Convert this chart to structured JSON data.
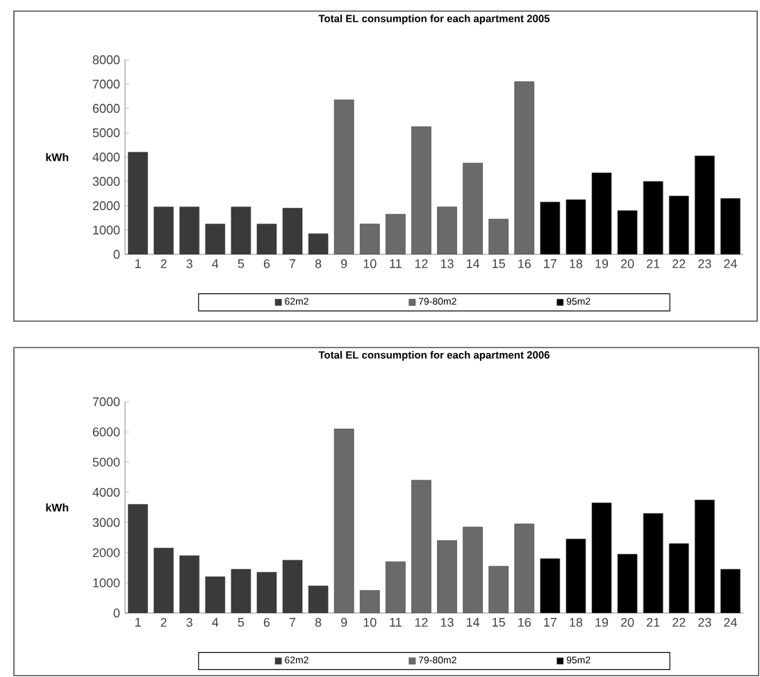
{
  "chart_data": [
    {
      "type": "bar",
      "title": "Total EL consumption for each apartment 2005",
      "ylabel": "kWh",
      "categories": [
        "1",
        "2",
        "3",
        "4",
        "5",
        "6",
        "7",
        "8",
        "9",
        "10",
        "11",
        "12",
        "13",
        "14",
        "15",
        "16",
        "17",
        "18",
        "19",
        "20",
        "21",
        "22",
        "23",
        "24"
      ],
      "series": [
        {
          "name": "62m2",
          "color": "#3a3a3a",
          "values": [
            4200,
            1950,
            1950,
            1250,
            1950,
            1250,
            1900,
            850,
            null,
            null,
            null,
            null,
            null,
            null,
            null,
            null,
            null,
            null,
            null,
            null,
            null,
            null,
            null,
            null
          ]
        },
        {
          "name": "79-80m2",
          "color": "#6a6a6a",
          "values": [
            null,
            null,
            null,
            null,
            null,
            null,
            null,
            null,
            6350,
            1250,
            1650,
            5250,
            1950,
            3750,
            1450,
            7100,
            null,
            null,
            null,
            null,
            null,
            null,
            null,
            null
          ]
        },
        {
          "name": "95m2",
          "color": "#000000",
          "values": [
            null,
            null,
            null,
            null,
            null,
            null,
            null,
            null,
            null,
            null,
            null,
            null,
            null,
            null,
            null,
            null,
            2150,
            2250,
            3350,
            1800,
            3000,
            2400,
            4050,
            2300
          ]
        }
      ],
      "ylim": [
        0,
        8000
      ],
      "yticks": [
        0,
        1000,
        2000,
        3000,
        4000,
        5000,
        6000,
        7000,
        8000
      ],
      "grid": false,
      "legend": "bottom"
    },
    {
      "type": "bar",
      "title": "Total EL consumption for each apartment 2006",
      "ylabel": "kWh",
      "categories": [
        "1",
        "2",
        "3",
        "4",
        "5",
        "6",
        "7",
        "8",
        "9",
        "10",
        "11",
        "12",
        "13",
        "14",
        "15",
        "16",
        "17",
        "18",
        "19",
        "20",
        "21",
        "22",
        "23",
        "24"
      ],
      "series": [
        {
          "name": "62m2",
          "color": "#3a3a3a",
          "values": [
            3600,
            2150,
            1900,
            1200,
            1450,
            1350,
            1750,
            900,
            null,
            null,
            null,
            null,
            null,
            null,
            null,
            null,
            null,
            null,
            null,
            null,
            null,
            null,
            null,
            null
          ]
        },
        {
          "name": "79-80m2",
          "color": "#6a6a6a",
          "values": [
            null,
            null,
            null,
            null,
            null,
            null,
            null,
            null,
            6100,
            750,
            1700,
            4400,
            2400,
            2850,
            1550,
            2950,
            null,
            null,
            null,
            null,
            null,
            null,
            null,
            null
          ]
        },
        {
          "name": "95m2",
          "color": "#000000",
          "values": [
            null,
            null,
            null,
            null,
            null,
            null,
            null,
            null,
            null,
            null,
            null,
            null,
            null,
            null,
            null,
            null,
            1800,
            2450,
            3650,
            1950,
            3300,
            2300,
            3750,
            1450
          ]
        }
      ],
      "ylim": [
        0,
        7000
      ],
      "yticks": [
        0,
        1000,
        2000,
        3000,
        4000,
        5000,
        6000,
        7000
      ],
      "grid": false,
      "legend": "bottom"
    }
  ]
}
